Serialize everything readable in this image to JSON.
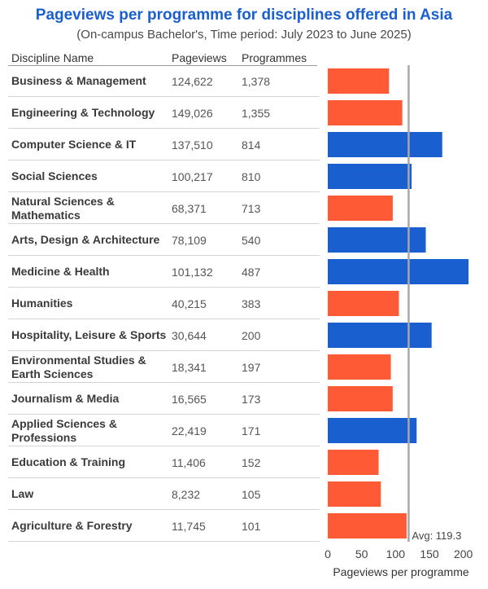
{
  "header": {
    "title": "Pageviews per programme for disciplines offered in Asia",
    "subtitle": "(On-campus Bachelor's, Time period: July 2023 to June 2025)"
  },
  "columns": {
    "discipline": "Discipline Name",
    "pageviews": "Pageviews",
    "programmes": "Programmes"
  },
  "colors": {
    "below_avg": "#ff5a36",
    "above_avg": "#1a5fd0",
    "avg_line": "#a8a8a8"
  },
  "chart_data": {
    "type": "bar",
    "orientation": "horizontal",
    "title": "Pageviews per programme for disciplines offered in Asia",
    "subtitle": "(On-campus Bachelor's, Time period: July 2023 to June 2025)",
    "xlabel": "Pageviews per programme",
    "xlim": [
      0,
      210
    ],
    "xticks": [
      0,
      50,
      100,
      150,
      200
    ],
    "average": 119.3,
    "average_label": "Avg: 119.3",
    "categories": [
      "Business & Management",
      "Engineering & Technology",
      "Computer Science & IT",
      "Social Sciences",
      "Natural Sciences & Mathematics",
      "Arts, Design & Architecture",
      "Medicine & Health",
      "Humanities",
      "Hospitality, Leisure & Sports",
      "Environmental Studies & Earth Sciences",
      "Journalism & Media",
      "Applied Sciences & Professions",
      "Education & Training",
      "Law",
      "Agriculture & Forestry"
    ],
    "pageviews": [
      "124,622",
      "149,026",
      "137,510",
      "100,217",
      "68,371",
      "78,109",
      "101,132",
      "40,215",
      "30,644",
      "18,341",
      "16,565",
      "22,419",
      "11,406",
      "8,232",
      "11,745"
    ],
    "programmes": [
      "1,378",
      "1,355",
      "814",
      "810",
      "713",
      "540",
      "487",
      "383",
      "200",
      "197",
      "173",
      "171",
      "152",
      "105",
      "101"
    ],
    "values": [
      90.4,
      110.0,
      168.9,
      123.7,
      95.9,
      144.6,
      207.7,
      105.0,
      153.2,
      93.1,
      95.8,
      131.1,
      75.0,
      78.4,
      116.3
    ]
  }
}
